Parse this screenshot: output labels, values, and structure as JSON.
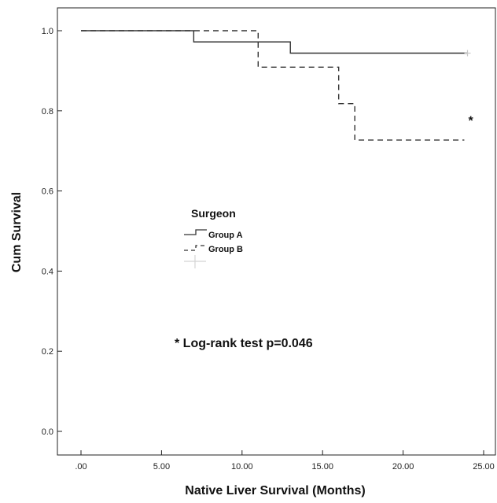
{
  "chart_data": {
    "type": "line",
    "subtype": "kaplan-meier",
    "xlabel": "Native Liver Survival (Months)",
    "ylabel": "Cum Survival",
    "xlim": [
      0,
      25
    ],
    "ylim": [
      0,
      1.05
    ],
    "x_ticks": [
      ".00",
      "5.00",
      "10.00",
      "15.00",
      "20.00",
      "25.00"
    ],
    "x_tick_values": [
      0,
      5,
      10,
      15,
      20,
      25
    ],
    "y_ticks": [
      "0.0",
      "0.2",
      "0.4",
      "0.6",
      "0.8",
      "1.0"
    ],
    "y_tick_values": [
      0.0,
      0.2,
      0.4,
      0.6,
      0.8,
      1.0
    ],
    "grid": false,
    "legend": {
      "title": "Surgeon",
      "placement": "center-left",
      "entries": [
        "Group A",
        "Group B"
      ]
    },
    "series": [
      {
        "name": "Group A",
        "line_style": "solid",
        "steps": [
          [
            0,
            1.0
          ],
          [
            7,
            0.972
          ],
          [
            13,
            0.944
          ],
          [
            24,
            0.944
          ]
        ],
        "censored": [
          [
            24,
            0.944
          ]
        ]
      },
      {
        "name": "Group B",
        "line_style": "dashed",
        "steps": [
          [
            0,
            1.0
          ],
          [
            11,
            0.909
          ],
          [
            16,
            0.818
          ],
          [
            17,
            0.727
          ],
          [
            23.8,
            0.727
          ]
        ],
        "censored": []
      }
    ],
    "annotations": [
      {
        "text": "* Log-rank test p=0.046"
      },
      {
        "text": "*",
        "x": 24.2,
        "y": 0.785
      }
    ]
  },
  "colors": {
    "line": "#333333",
    "censor": "#c8c8c8",
    "frame": "#222222"
  }
}
